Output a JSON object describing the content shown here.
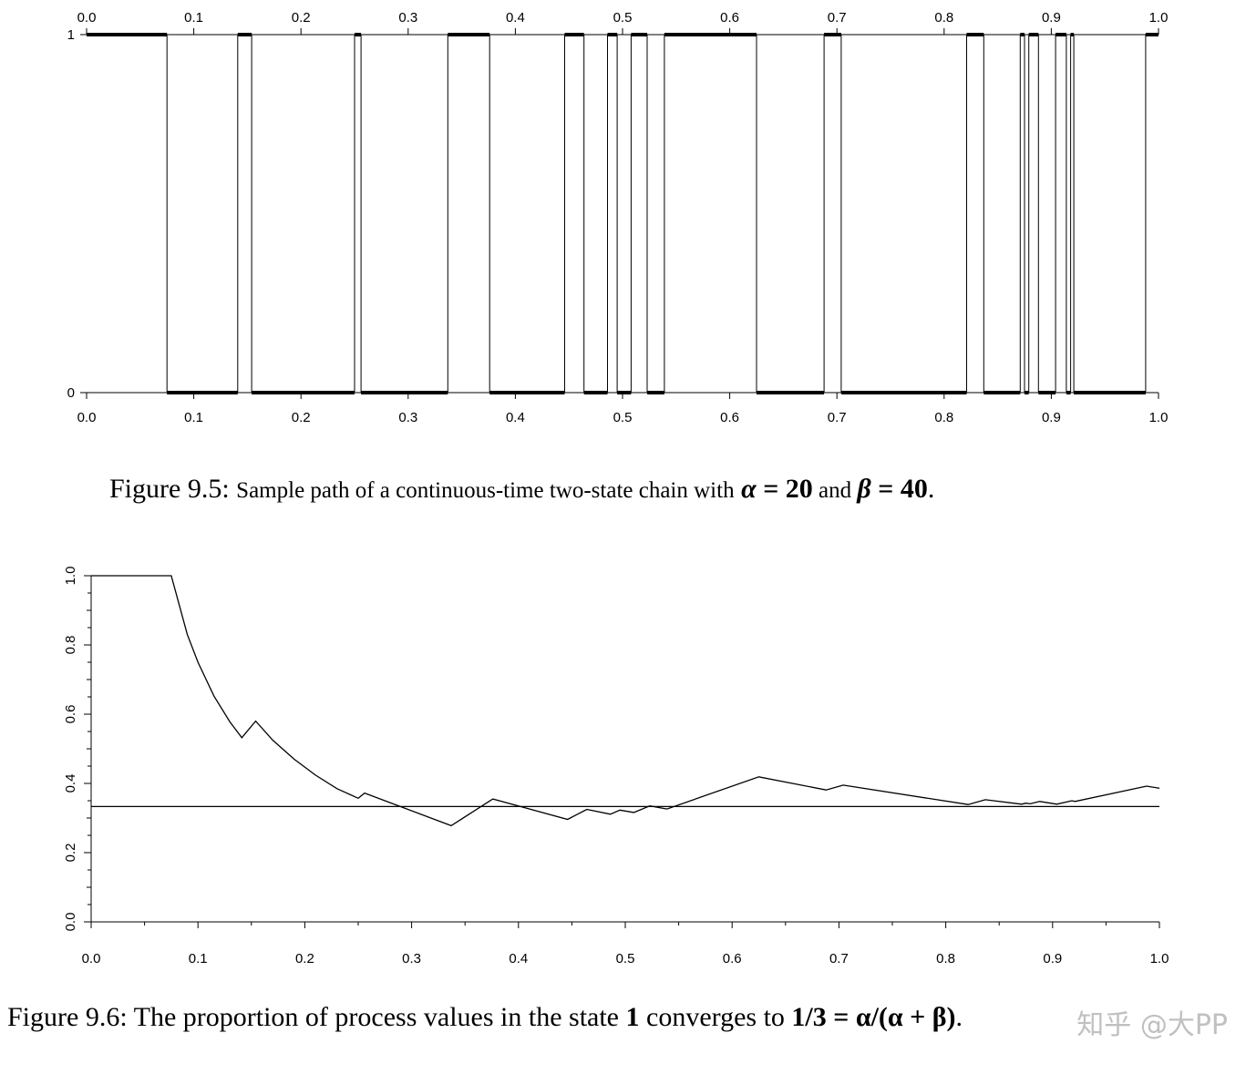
{
  "chart_data": [
    {
      "type": "line",
      "subtype": "step",
      "xlim": [
        0.0,
        1.0
      ],
      "ylim": [
        0,
        1
      ],
      "xticks": [
        "0.0",
        "0.1",
        "0.2",
        "0.3",
        "0.4",
        "0.5",
        "0.6",
        "0.7",
        "0.8",
        "0.9",
        "1.0"
      ],
      "yticks": [
        "0",
        "1"
      ],
      "grid": false,
      "series": [
        {
          "x": [
            0.0,
            0.075,
            0.075,
            0.141,
            0.141,
            0.154,
            0.154,
            0.25,
            0.25,
            0.256,
            0.256,
            0.337,
            0.337,
            0.376,
            0.376,
            0.446,
            0.446,
            0.464,
            0.464,
            0.486,
            0.486,
            0.495,
            0.495,
            0.508,
            0.508,
            0.523,
            0.523,
            0.539,
            0.539,
            0.625,
            0.625,
            0.688,
            0.688,
            0.704,
            0.704,
            0.821,
            0.821,
            0.837,
            0.837,
            0.871,
            0.871,
            0.875,
            0.875,
            0.879,
            0.879,
            0.888,
            0.888,
            0.904,
            0.904,
            0.914,
            0.914,
            0.918,
            0.918,
            0.921,
            0.921,
            0.988,
            0.988,
            1.0
          ],
          "y": [
            1,
            1,
            0,
            0,
            1,
            1,
            0,
            0,
            1,
            1,
            0,
            0,
            1,
            1,
            0,
            0,
            1,
            1,
            0,
            0,
            1,
            1,
            0,
            0,
            1,
            1,
            0,
            0,
            1,
            1,
            0,
            0,
            1,
            1,
            0,
            0,
            1,
            1,
            0,
            0,
            1,
            1,
            0,
            0,
            1,
            1,
            0,
            0,
            1,
            1,
            0,
            0,
            1,
            1,
            0,
            0,
            1,
            1
          ]
        }
      ]
    },
    {
      "type": "line",
      "xlim": [
        0.0,
        1.0
      ],
      "ylim": [
        0.0,
        1.0
      ],
      "xticks": [
        "0.0",
        "0.1",
        "0.2",
        "0.3",
        "0.4",
        "0.5",
        "0.6",
        "0.7",
        "0.8",
        "0.9",
        "1.0"
      ],
      "yticks": [
        "0.0",
        "0.2",
        "0.4",
        "0.6",
        "0.8",
        "1.0"
      ],
      "grid": false,
      "series": [
        {
          "x": [
            0.0,
            0.075,
            0.09,
            0.1,
            0.115,
            0.13,
            0.141,
            0.154,
            0.17,
            0.19,
            0.21,
            0.23,
            0.25,
            0.256,
            0.337,
            0.376,
            0.446,
            0.464,
            0.486,
            0.495,
            0.508,
            0.523,
            0.539,
            0.625,
            0.688,
            0.704,
            0.821,
            0.837,
            0.871,
            0.875,
            0.879,
            0.888,
            0.904,
            0.914,
            0.918,
            0.921,
            0.988,
            1.0
          ],
          "y": [
            1.0,
            1.0,
            0.83,
            0.75,
            0.652,
            0.577,
            0.532,
            0.58,
            0.525,
            0.47,
            0.424,
            0.385,
            0.357,
            0.372,
            0.278,
            0.355,
            0.296,
            0.325,
            0.311,
            0.323,
            0.316,
            0.335,
            0.326,
            0.419,
            0.381,
            0.395,
            0.339,
            0.353,
            0.34,
            0.343,
            0.341,
            0.348,
            0.34,
            0.347,
            0.35,
            0.348,
            0.392,
            0.386
          ]
        },
        {
          "x": [
            0.0,
            1.0
          ],
          "y": [
            0.3333,
            0.3333
          ]
        }
      ]
    }
  ],
  "captions": {
    "fig95_label": "Figure 9.5:",
    "fig95_text_a": "Sample path of a continuous-time two-state chain with",
    "fig95_alpha": "α",
    "fig95_eq1": " = 20",
    "fig95_and": " and ",
    "fig95_beta": "β",
    "fig95_eq2": " = 40",
    "fig95_end": ".",
    "fig96_label": "Figure 9.6:",
    "fig96_text": "The proportion of process values in the state",
    "fig96_state": "1",
    "fig96_text2": "converges to",
    "fig96_formula": "1/3 = α/(α + β)",
    "fig96_end": "."
  },
  "watermark": "知乎 @大PP"
}
